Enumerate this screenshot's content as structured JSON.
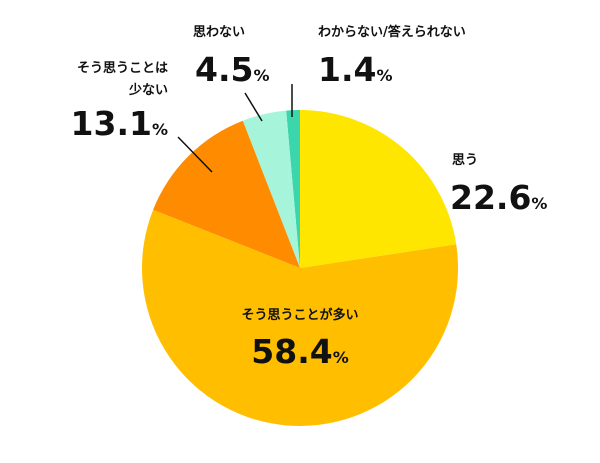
{
  "chart_data": {
    "type": "pie",
    "categories": [
      "思う",
      "そう思うことが多い",
      "そう思うことは少ない",
      "思わない",
      "わからない/答えられない"
    ],
    "values": [
      22.6,
      58.4,
      13.1,
      4.5,
      1.4
    ],
    "value_labels": [
      "22.6%",
      "58.4%",
      "13.1%",
      "4.5%",
      "1.4%"
    ],
    "colors": [
      "#ffe600",
      "#ffbf00",
      "#ff8c00",
      "#a6f5db",
      "#3cd6ad"
    ]
  }
}
